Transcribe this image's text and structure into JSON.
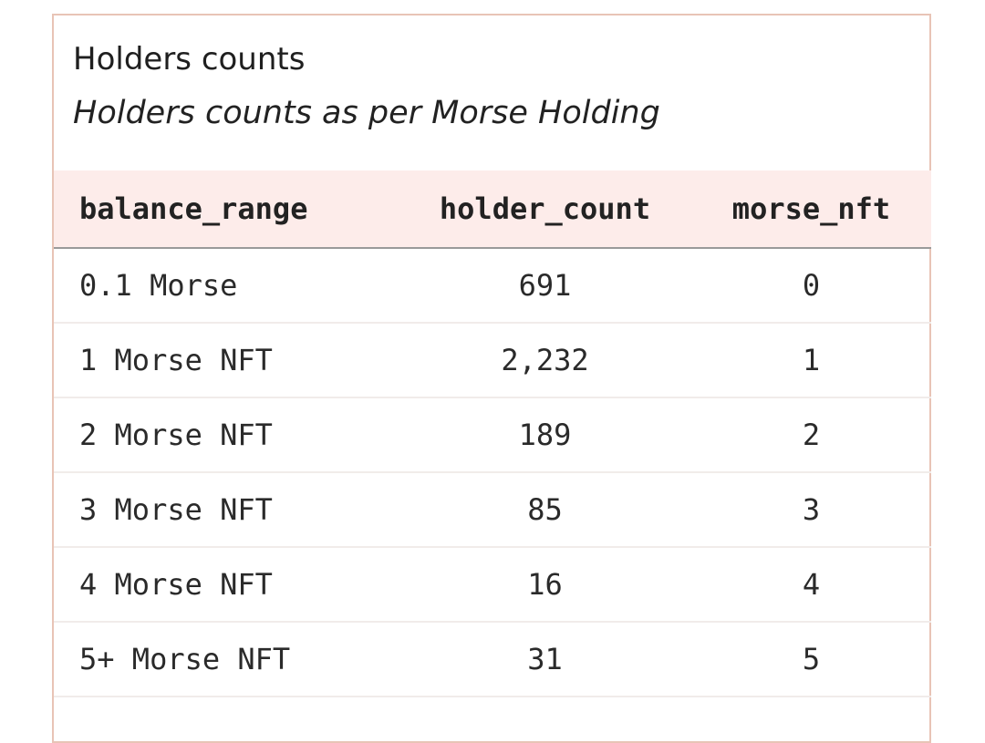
{
  "card": {
    "title": "Holders counts",
    "subtitle": "Holders counts as per Morse Holding"
  },
  "table": {
    "columns": [
      "balance_range",
      "holder_count",
      "morse_nft"
    ],
    "rows": [
      [
        "0.1 Morse",
        "691",
        "0"
      ],
      [
        "1 Morse NFT",
        "2,232",
        "1"
      ],
      [
        "2 Morse NFT",
        "189",
        "2"
      ],
      [
        "3 Morse NFT",
        "85",
        "3"
      ],
      [
        "4 Morse NFT",
        "16",
        "4"
      ],
      [
        "5+ Morse NFT",
        "31",
        "5"
      ]
    ]
  },
  "colors": {
    "card_border": "#e8c4b6",
    "header_background": "#fdecea",
    "header_rule": "#9a9a9a",
    "row_rule": "#f1ecea"
  }
}
